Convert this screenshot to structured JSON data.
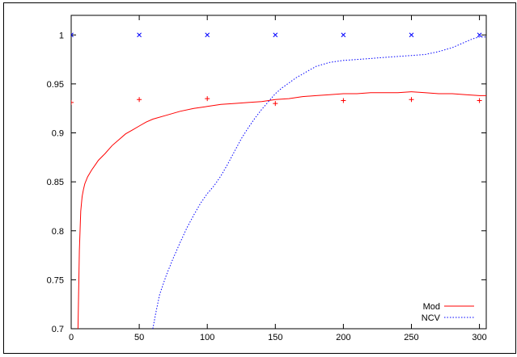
{
  "chart_data": {
    "type": "line",
    "title": "",
    "xlabel": "",
    "ylabel": "",
    "xlim": [
      0,
      305
    ],
    "ylim": [
      0.7,
      1.02
    ],
    "grid": false,
    "legend_position": "bottom-right",
    "x_ticks": [
      0,
      50,
      100,
      150,
      200,
      250,
      300
    ],
    "x_tick_labels": [
      "0",
      "50",
      "100",
      "150",
      "200",
      "250",
      "300"
    ],
    "y_ticks": [
      0.7,
      0.75,
      0.8,
      0.85,
      0.9,
      0.95,
      1.0
    ],
    "y_tick_labels": [
      "0.7",
      "0.75",
      "0.8",
      "0.85",
      "0.9",
      "0.95",
      "1"
    ],
    "colors": {
      "mod": "#ff0000",
      "ncv": "#0000ff",
      "axis": "#000000"
    },
    "series": [
      {
        "name": "Mod",
        "style": "solid",
        "color": "#ff0000",
        "x": [
          5,
          6,
          7,
          8,
          9,
          10,
          12,
          15,
          18,
          20,
          25,
          30,
          35,
          40,
          45,
          50,
          55,
          60,
          70,
          80,
          90,
          100,
          110,
          120,
          130,
          140,
          150,
          160,
          170,
          180,
          190,
          200,
          210,
          220,
          230,
          240,
          250,
          260,
          270,
          280,
          290,
          300,
          305
        ],
        "y": [
          0.7,
          0.78,
          0.82,
          0.835,
          0.842,
          0.848,
          0.855,
          0.862,
          0.868,
          0.872,
          0.879,
          0.887,
          0.893,
          0.899,
          0.903,
          0.907,
          0.911,
          0.914,
          0.918,
          0.922,
          0.925,
          0.927,
          0.929,
          0.93,
          0.931,
          0.932,
          0.934,
          0.935,
          0.937,
          0.938,
          0.939,
          0.94,
          0.94,
          0.941,
          0.941,
          0.941,
          0.942,
          0.941,
          0.94,
          0.94,
          0.939,
          0.938,
          0.938
        ]
      },
      {
        "name": "NCV",
        "style": "dotted",
        "color": "#0000ff",
        "x": [
          60,
          62,
          65,
          70,
          75,
          80,
          85,
          90,
          95,
          100,
          105,
          110,
          115,
          120,
          125,
          130,
          135,
          140,
          145,
          150,
          155,
          160,
          165,
          170,
          175,
          180,
          190,
          200,
          210,
          220,
          230,
          240,
          250,
          260,
          270,
          280,
          290,
          295,
          300,
          305
        ],
        "y": [
          0.7,
          0.715,
          0.735,
          0.755,
          0.772,
          0.788,
          0.803,
          0.816,
          0.828,
          0.838,
          0.846,
          0.856,
          0.868,
          0.881,
          0.894,
          0.905,
          0.915,
          0.924,
          0.932,
          0.94,
          0.946,
          0.951,
          0.956,
          0.96,
          0.964,
          0.968,
          0.972,
          0.974,
          0.975,
          0.976,
          0.977,
          0.978,
          0.979,
          0.98,
          0.983,
          0.987,
          0.993,
          0.996,
          0.998,
          0.998
        ]
      },
      {
        "name": "",
        "style": "points-plus",
        "color": "#ff0000",
        "x": [
          0,
          50,
          100,
          150,
          200,
          250,
          300
        ],
        "y": [
          0.931,
          0.934,
          0.935,
          0.93,
          0.933,
          0.934,
          0.933
        ]
      },
      {
        "name": "",
        "style": "points-cross",
        "color": "#0000ff",
        "x": [
          0,
          50,
          100,
          150,
          200,
          250,
          300
        ],
        "y": [
          1.0,
          1.0,
          1.0,
          1.0,
          1.0,
          1.0,
          1.0
        ]
      }
    ]
  }
}
